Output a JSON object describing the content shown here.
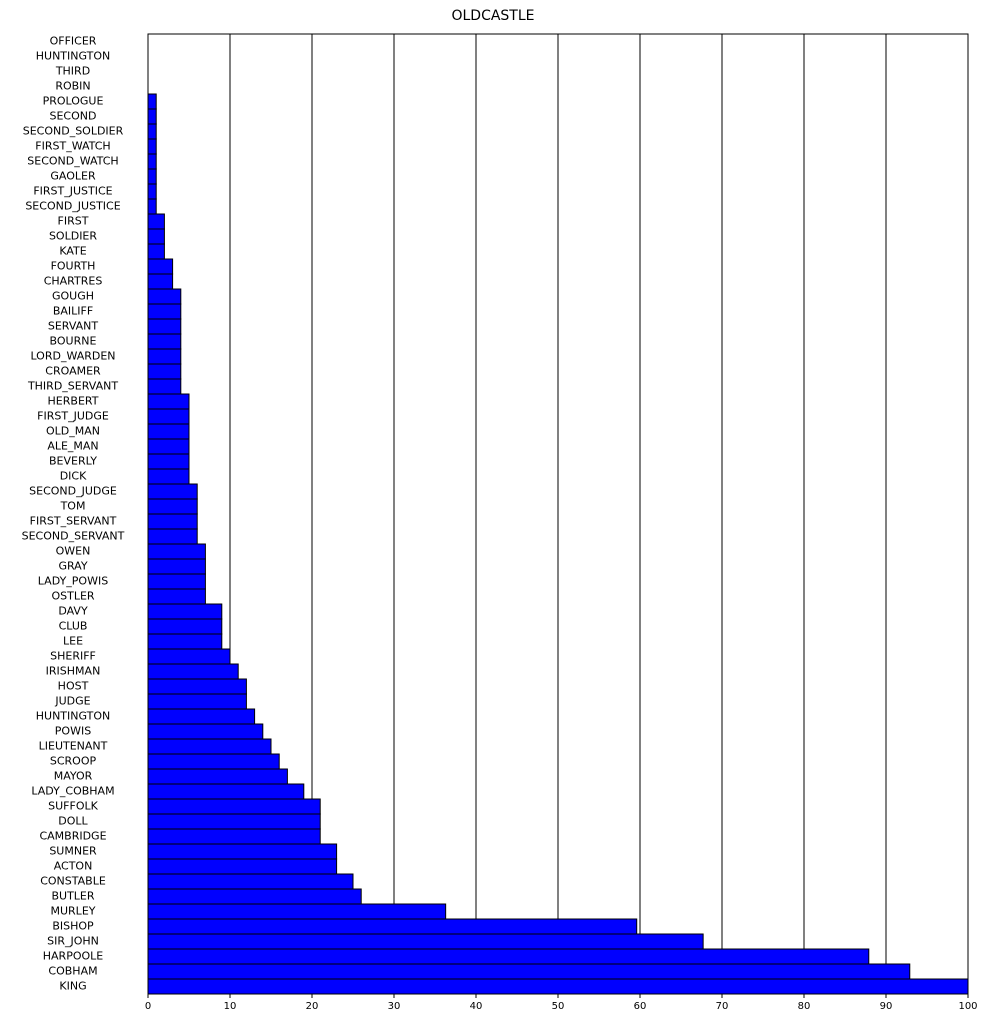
{
  "chart_data": {
    "type": "barh",
    "title": "OLDCASTLE",
    "categories": [
      "OFFICER",
      "HUNTINGTON",
      "THIRD",
      "ROBIN",
      "PROLOGUE",
      "SECOND",
      "SECOND_SOLDIER",
      "FIRST_WATCH",
      "SECOND_WATCH",
      "GAOLER",
      "FIRST_JUSTICE",
      "SECOND_JUSTICE",
      "FIRST",
      "SOLDIER",
      "KATE",
      "FOURTH",
      "CHARTRES",
      "GOUGH",
      "BAILIFF",
      "SERVANT",
      "BOURNE",
      "LORD_WARDEN",
      "CROAMER",
      "THIRD_SERVANT",
      "HERBERT",
      "FIRST_JUDGE",
      "OLD_MAN",
      "ALE_MAN",
      "BEVERLY",
      "DICK",
      "SECOND_JUDGE",
      "TOM",
      "FIRST_SERVANT",
      "SECOND_SERVANT",
      "OWEN",
      "GRAY",
      "LADY_POWIS",
      "OSTLER",
      "DAVY",
      "CLUB",
      "LEE",
      "SHERIFF",
      "IRISHMAN",
      "HOST",
      "JUDGE",
      "HUNTINGTON",
      "POWIS",
      "LIEUTENANT",
      "SCROOP",
      "MAYOR",
      "LADY_COBHAM",
      "SUFFOLK",
      "DOLL",
      "CAMBRIDGE",
      "SUMNER",
      "ACTON",
      "CONSTABLE",
      "BUTLER",
      "MURLEY",
      "BISHOP",
      "SIR_JOHN",
      "HARPOOLE",
      "COBHAM",
      "KING"
    ],
    "values": [
      0,
      0,
      0,
      0,
      1,
      1,
      1,
      1,
      1,
      1,
      1,
      1,
      2,
      2,
      2,
      3,
      3,
      4,
      4,
      4,
      4,
      4,
      4,
      4,
      5,
      5,
      5,
      5,
      5,
      5,
      6,
      6,
      6,
      6,
      7,
      7,
      7,
      7,
      9,
      9,
      9,
      10,
      11,
      12,
      12,
      13,
      14,
      15,
      16,
      17,
      19,
      21,
      21,
      21,
      23,
      23,
      25,
      26,
      36.3,
      59.6,
      67.7,
      87.9,
      92.9,
      100
    ],
    "color": "#0000ff",
    "xlim": [
      0,
      100
    ],
    "xticks": [
      0,
      10,
      20,
      30,
      40,
      50,
      60,
      70,
      80,
      90,
      100
    ],
    "grid": true
  }
}
